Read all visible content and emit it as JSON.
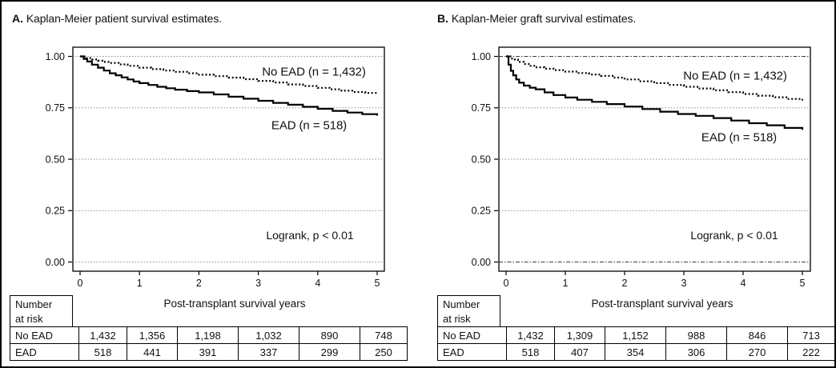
{
  "chart_data": [
    {
      "type": "line",
      "subtype": "kaplan-meier-step",
      "panel": "A",
      "title_prefix": "A.",
      "title_rest": "Kaplan-Meier patient survival estimates.",
      "xlabel": "Post-transplant survival years",
      "x_ticks": [
        "0",
        "1",
        "2",
        "3",
        "4",
        "5"
      ],
      "y_ticks": [
        "1.00",
        "0.75",
        "0.50",
        "0.25",
        "0.00"
      ],
      "xlim": [
        0,
        5
      ],
      "ylim": [
        0,
        1
      ],
      "grid": "horizontal-dotted",
      "legend_position": "inline-labels",
      "annotation": "Logrank, p < 0.01",
      "series": [
        {
          "name": "No EAD",
          "label": "No EAD (n = 1,432)",
          "n": 1432,
          "line": "dotted",
          "x": [
            0,
            0.1,
            0.2,
            0.3,
            0.4,
            0.5,
            0.65,
            0.8,
            1.0,
            1.2,
            1.4,
            1.6,
            1.8,
            2.0,
            2.25,
            2.5,
            2.75,
            3.0,
            3.25,
            3.5,
            3.75,
            4.0,
            4.2,
            4.4,
            4.6,
            4.8,
            5.0
          ],
          "y": [
            1.0,
            0.992,
            0.985,
            0.979,
            0.973,
            0.968,
            0.961,
            0.954,
            0.945,
            0.938,
            0.931,
            0.925,
            0.918,
            0.911,
            0.904,
            0.897,
            0.889,
            0.881,
            0.873,
            0.864,
            0.856,
            0.847,
            0.84,
            0.833,
            0.827,
            0.822,
            0.817
          ]
        },
        {
          "name": "EAD",
          "label": "EAD (n = 518)",
          "n": 518,
          "line": "solid",
          "x": [
            0,
            0.06,
            0.12,
            0.2,
            0.3,
            0.4,
            0.5,
            0.6,
            0.7,
            0.8,
            0.9,
            1.0,
            1.15,
            1.3,
            1.45,
            1.6,
            1.8,
            2.0,
            2.25,
            2.5,
            2.75,
            3.0,
            3.25,
            3.5,
            3.75,
            4.0,
            4.25,
            4.5,
            4.75,
            5.0
          ],
          "y": [
            1.0,
            0.988,
            0.975,
            0.96,
            0.945,
            0.931,
            0.918,
            0.908,
            0.898,
            0.888,
            0.878,
            0.87,
            0.861,
            0.852,
            0.845,
            0.838,
            0.831,
            0.825,
            0.815,
            0.804,
            0.794,
            0.784,
            0.774,
            0.765,
            0.755,
            0.745,
            0.735,
            0.727,
            0.719,
            0.712
          ]
        }
      ],
      "risk_table": {
        "corner": [
          "Number",
          "at risk"
        ],
        "rows": [
          {
            "label": "No EAD",
            "values": [
              "1,432",
              "1,356",
              "1,198",
              "1,032",
              "890",
              "748"
            ]
          },
          {
            "label": "EAD",
            "values": [
              "518",
              "441",
              "391",
              "337",
              "299",
              "250"
            ]
          }
        ]
      }
    },
    {
      "type": "line",
      "subtype": "kaplan-meier-step",
      "panel": "B",
      "title_prefix": "B.",
      "title_rest": "Kaplan-Meier graft survival estimates.",
      "xlabel": "Post-transplant survival years",
      "x_ticks": [
        "0",
        "1",
        "2",
        "3",
        "4",
        "5"
      ],
      "y_ticks": [
        "1.00",
        "0.75",
        "0.50",
        "0.25",
        "0.00"
      ],
      "xlim": [
        0,
        5
      ],
      "ylim": [
        0,
        1
      ],
      "grid": "horizontal-dotted",
      "legend_position": "inline-labels",
      "annotation": "Logrank, p < 0.01",
      "series": [
        {
          "name": "No EAD",
          "label": "No EAD (n = 1,432)",
          "n": 1432,
          "line": "dotted",
          "x": [
            0,
            0.1,
            0.2,
            0.3,
            0.4,
            0.5,
            0.65,
            0.8,
            1.0,
            1.2,
            1.4,
            1.6,
            1.8,
            2.0,
            2.25,
            2.5,
            2.75,
            3.0,
            3.25,
            3.5,
            3.75,
            4.0,
            4.25,
            4.5,
            4.75,
            5.0
          ],
          "y": [
            1.0,
            0.985,
            0.973,
            0.963,
            0.954,
            0.947,
            0.94,
            0.933,
            0.926,
            0.919,
            0.912,
            0.905,
            0.897,
            0.888,
            0.879,
            0.87,
            0.861,
            0.852,
            0.844,
            0.835,
            0.826,
            0.817,
            0.809,
            0.801,
            0.793,
            0.786
          ]
        },
        {
          "name": "EAD",
          "label": "EAD (n = 518)",
          "n": 518,
          "line": "solid",
          "x": [
            0,
            0.04,
            0.08,
            0.12,
            0.17,
            0.22,
            0.3,
            0.4,
            0.5,
            0.65,
            0.8,
            1.0,
            1.2,
            1.45,
            1.7,
            2.0,
            2.3,
            2.6,
            2.9,
            3.2,
            3.5,
            3.8,
            4.1,
            4.4,
            4.7,
            5.0
          ],
          "y": [
            1.0,
            0.96,
            0.93,
            0.908,
            0.888,
            0.872,
            0.858,
            0.848,
            0.84,
            0.825,
            0.812,
            0.8,
            0.789,
            0.779,
            0.768,
            0.756,
            0.744,
            0.731,
            0.72,
            0.711,
            0.7,
            0.688,
            0.675,
            0.665,
            0.652,
            0.643
          ]
        }
      ],
      "risk_table": {
        "corner": [
          "Number",
          "at risk"
        ],
        "rows": [
          {
            "label": "No EAD",
            "values": [
              "1,432",
              "1,309",
              "1,152",
              "988",
              "846",
              "713"
            ]
          },
          {
            "label": "EAD",
            "values": [
              "518",
              "407",
              "354",
              "306",
              "270",
              "222"
            ]
          }
        ]
      }
    }
  ]
}
